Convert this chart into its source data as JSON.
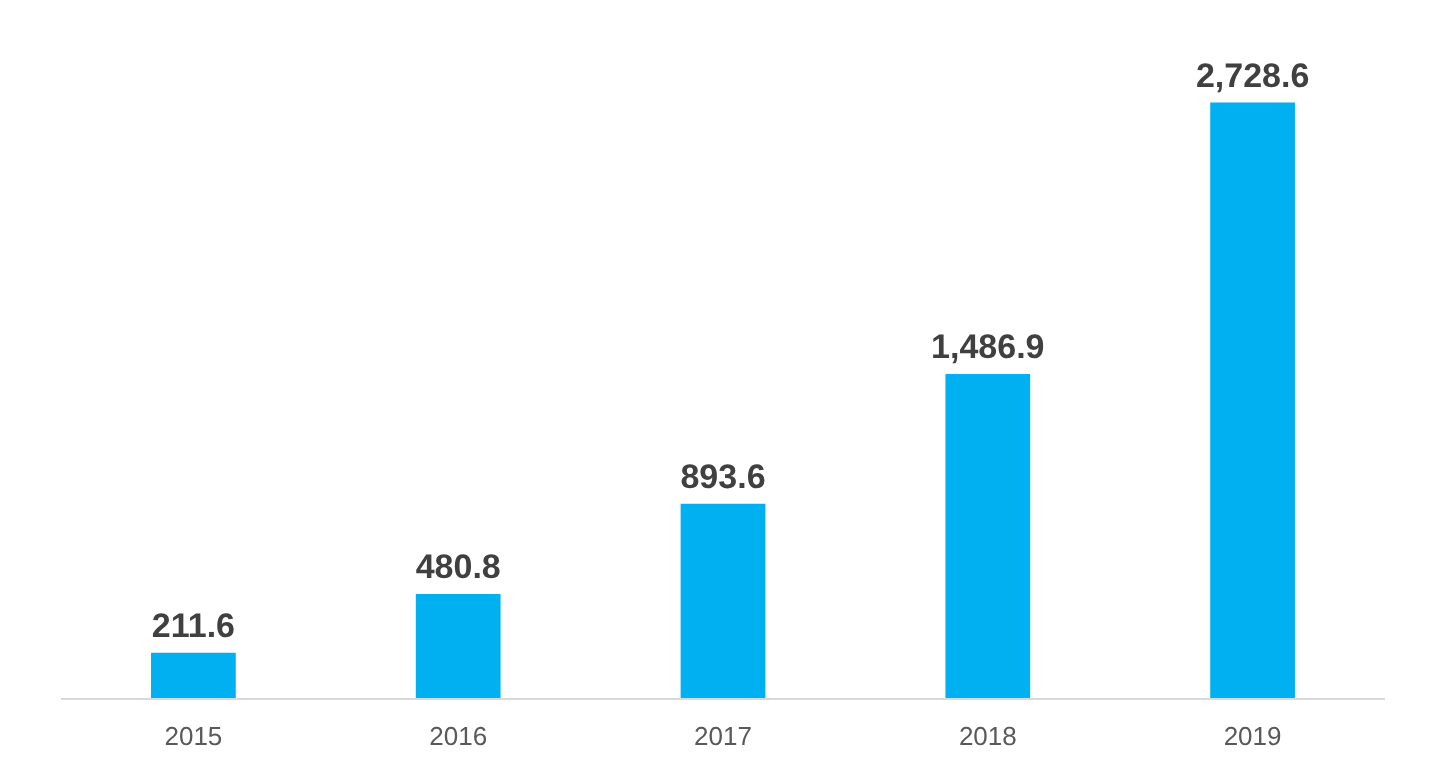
{
  "chart_data": {
    "type": "bar",
    "categories": [
      "2015",
      "2016",
      "2017",
      "2018",
      "2019"
    ],
    "values": [
      211.6,
      480.8,
      893.6,
      1486.9,
      2728.6
    ],
    "value_labels": [
      "211.6",
      "480.8",
      "893.6",
      "1,486.9",
      "2,728.6"
    ],
    "color": "#00b0f0"
  }
}
